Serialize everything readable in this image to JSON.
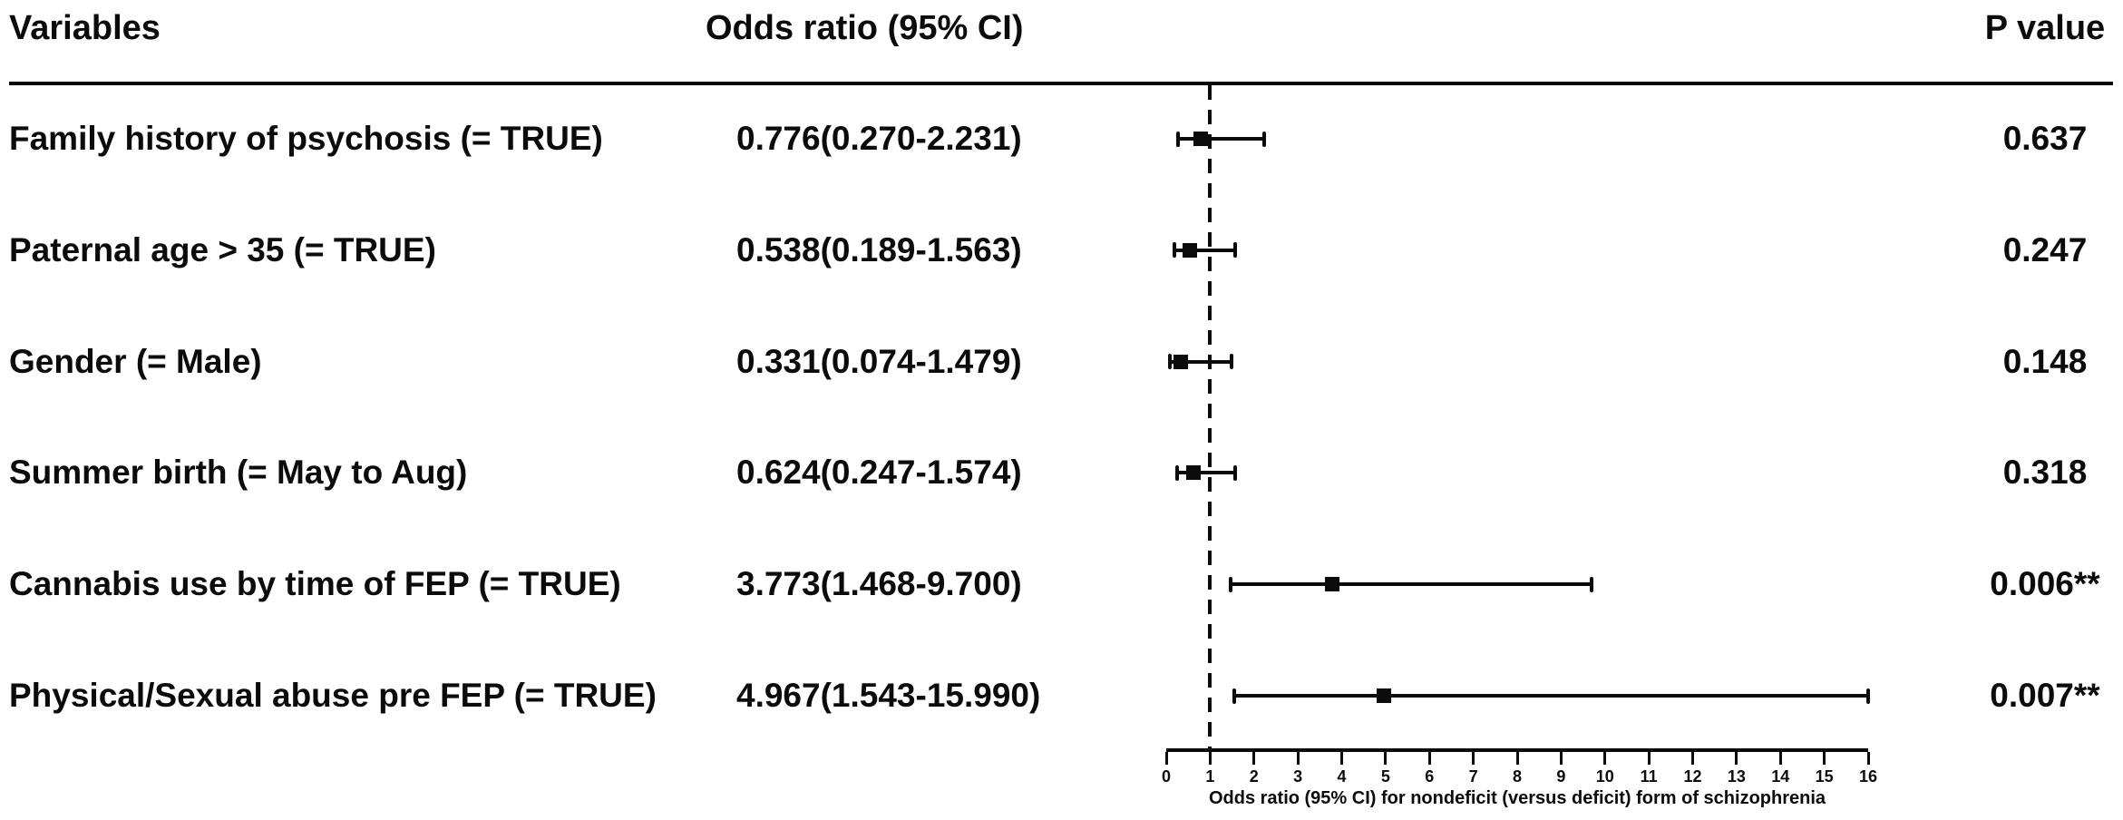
{
  "figure": {
    "kind": "forest-plot",
    "ink_color": "#0b0b0b",
    "background_color": "#ffffff"
  },
  "chart_data": {
    "type": "scatter",
    "subtype": "forest-plot",
    "title": "",
    "columns": [
      "Variables",
      "Odds ratio (95% CI)",
      "P value"
    ],
    "rows": [
      {
        "label": "Family history of psychosis (= TRUE)",
        "or_ci": "0.776(0.270-2.231)",
        "or": 0.776,
        "ci_low": 0.27,
        "ci_high": 2.231,
        "p": "0.637"
      },
      {
        "label": "Paternal age > 35 (= TRUE)",
        "or_ci": "0.538(0.189-1.563)",
        "or": 0.538,
        "ci_low": 0.189,
        "ci_high": 1.563,
        "p": "0.247"
      },
      {
        "label": "Gender (= Male)",
        "or_ci": "0.331(0.074-1.479)",
        "or": 0.331,
        "ci_low": 0.074,
        "ci_high": 1.479,
        "p": "0.148"
      },
      {
        "label": "Summer birth (= May to Aug)",
        "or_ci": "0.624(0.247-1.574)",
        "or": 0.624,
        "ci_low": 0.247,
        "ci_high": 1.574,
        "p": "0.318"
      },
      {
        "label": "Cannabis use by time of FEP (= TRUE)",
        "or_ci": "3.773(1.468-9.700)",
        "or": 3.773,
        "ci_low": 1.468,
        "ci_high": 9.7,
        "p": "0.006**"
      },
      {
        "label": "Physical/Sexual abuse pre FEP (= TRUE)",
        "or_ci": "4.967(1.543-15.990)",
        "or": 4.967,
        "ci_low": 1.543,
        "ci_high": 15.99,
        "p": "0.007**"
      }
    ],
    "axis": {
      "min": 0,
      "max": 16,
      "ticks": [
        0,
        1,
        2,
        3,
        4,
        5,
        6,
        7,
        8,
        9,
        10,
        11,
        12,
        13,
        14,
        15,
        16
      ],
      "reference_line": 1,
      "label": "Odds ratio (95% CI) for nondeficit (versus deficit) form of schizophrenia",
      "grid": false,
      "legend": "none"
    }
  }
}
